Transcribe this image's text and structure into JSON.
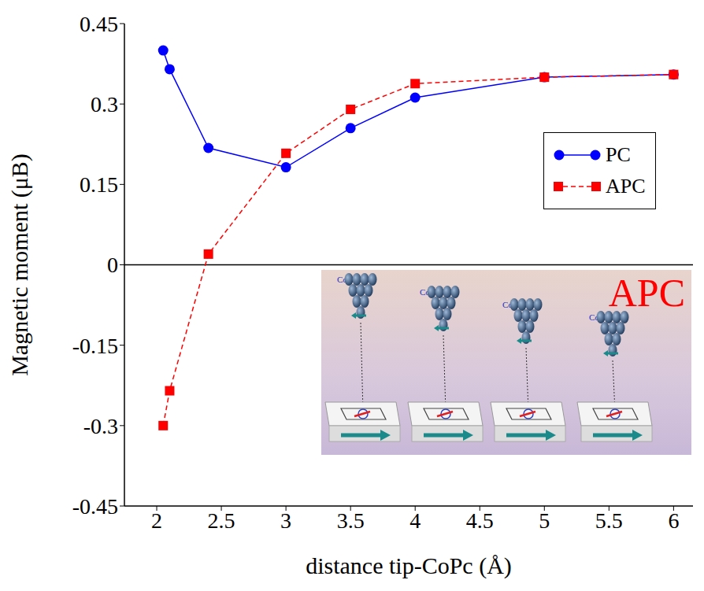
{
  "chart_data": {
    "type": "line",
    "x": [
      2.05,
      2.1,
      2.4,
      3.0,
      3.5,
      4.0,
      5.0,
      6.0
    ],
    "series": [
      {
        "name": "PC",
        "color": "#0000ff",
        "marker": "circle",
        "line_style": "solid",
        "values": [
          0.4,
          0.365,
          0.218,
          0.182,
          0.255,
          0.312,
          0.35,
          0.355
        ]
      },
      {
        "name": "APC",
        "color": "#ff0000",
        "marker": "square",
        "line_style": "dashed",
        "values": [
          -0.3,
          -0.235,
          0.02,
          0.208,
          0.29,
          0.338,
          0.35,
          0.355
        ]
      }
    ],
    "x_label": "distance tip-CoPc (Å)",
    "y_label": "Magnetic moment (μB)",
    "xlim": [
      1.75,
      6.15
    ],
    "xticks": [
      2,
      2.5,
      3,
      3.5,
      4,
      4.5,
      5,
      5.5,
      6
    ],
    "ylim": [
      -0.45,
      0.45
    ],
    "yticks": [
      -0.45,
      -0.3,
      -0.15,
      0,
      0.15,
      0.3,
      0.45
    ],
    "reference_lines": [
      {
        "y": 0
      }
    ],
    "legend": "upper right",
    "grid": false,
    "annotations": {
      "inset_title": "APC",
      "tip_labels": [
        "Co",
        "Co",
        "Co",
        "Co"
      ]
    }
  }
}
